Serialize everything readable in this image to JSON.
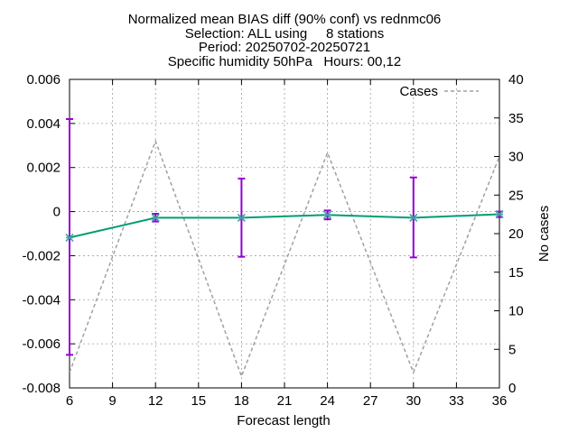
{
  "chart_data": {
    "type": "line",
    "title_lines": [
      "Normalized mean BIAS diff (90% conf) vs rednmc06",
      "Selection: ALL using     8 stations",
      "Period: 20250702-20250721",
      "Specific humidity 50hPa   Hours: 00,12"
    ],
    "xlabel": "Forecast length",
    "ylabel": "",
    "y2label": "No cases",
    "xlim": [
      6,
      36
    ],
    "ylim": [
      -0.008,
      0.006
    ],
    "y2lim": [
      0,
      40
    ],
    "x_ticks": [
      6,
      9,
      12,
      15,
      18,
      21,
      24,
      27,
      30,
      33,
      36
    ],
    "x_tick_labels": [
      "6",
      "9",
      "12",
      "15",
      "18",
      "21",
      "24",
      "27",
      "30",
      "33",
      "36"
    ],
    "y_ticks": [
      -0.008,
      -0.006,
      -0.004,
      -0.002,
      0,
      0.002,
      0.004,
      0.006
    ],
    "y_tick_labels": [
      "-0.008",
      "-0.006",
      "-0.004",
      "-0.002",
      "0",
      "0.002",
      "0.004",
      "0.006"
    ],
    "y2_ticks": [
      0,
      5,
      10,
      15,
      20,
      25,
      30,
      35,
      40
    ],
    "y2_tick_labels": [
      "0",
      "5",
      "10",
      "15",
      "20",
      "25",
      "30",
      "35",
      "40"
    ],
    "grid": true,
    "legend_position": "top-right",
    "bias": {
      "color": "#009e73",
      "marker_color": "#40a0a0",
      "x": [
        6,
        12,
        18,
        24,
        30,
        36
      ],
      "y": [
        -0.00118,
        -0.00028,
        -0.00028,
        -0.00015,
        -0.00028,
        -0.00012
      ]
    },
    "confidence": {
      "color": "#9400d3",
      "x": [
        6,
        12,
        18,
        24,
        30,
        36
      ],
      "low": [
        -0.0065,
        -0.00045,
        -0.00205,
        -0.00035,
        -0.00208,
        -0.00025
      ],
      "high": [
        0.0042,
        -0.0001,
        0.0015,
        5e-05,
        0.00155,
        0
      ]
    },
    "cases": {
      "name": "Cases",
      "color": "#a0a0a0",
      "x": [
        6,
        12,
        18,
        24,
        30,
        36
      ],
      "y": [
        2,
        32,
        1.5,
        30.5,
        2,
        30
      ]
    }
  }
}
